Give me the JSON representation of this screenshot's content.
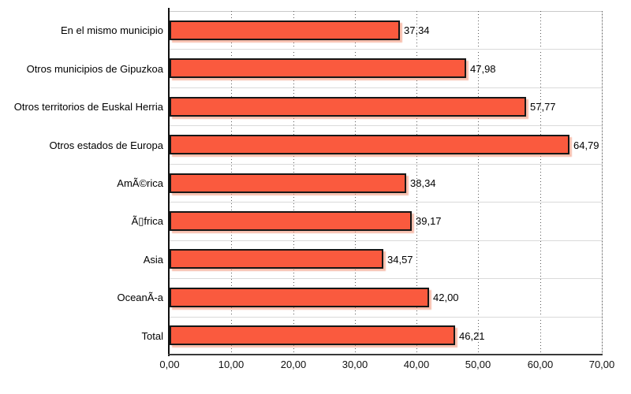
{
  "chart_data": {
    "type": "bar",
    "orientation": "horizontal",
    "title": "",
    "xlabel": "",
    "ylabel": "",
    "categories": [
      "En el mismo municipio",
      "Otros municipios de Gipuzkoa",
      "Otros territorios de Euskal Herria",
      "Otros estados de Europa",
      "AmÃ©rica",
      "Ã▯frica",
      "Asia",
      "OceanÃ-a",
      "Total"
    ],
    "values": [
      37.34,
      47.98,
      57.77,
      64.79,
      38.34,
      39.17,
      34.57,
      42.0,
      46.21
    ],
    "value_labels": [
      "37,34",
      "47,98",
      "57,77",
      "64,79",
      "38,34",
      "39,17",
      "34,57",
      "42,00",
      "46,21"
    ],
    "xlim": [
      0,
      70
    ],
    "x_tick_step": 10,
    "x_ticks": [
      "0,00",
      "10,00",
      "20,00",
      "30,00",
      "40,00",
      "50,00",
      "60,00",
      "70,00"
    ],
    "grid": "vertical-dotted",
    "legend": "none",
    "colors": {
      "bar_fill": "#FA5A3E",
      "bar_border": "#161616",
      "bar_shadow": "#F3B2A0",
      "gridline": "#5A5A5A",
      "row_separator": "#DADADA",
      "plot_frame": "#C9C9C9",
      "y_axis": "#0F0F0F",
      "x_axis": "#3A3A3A",
      "text": "#000000",
      "background": "#FFFFFF"
    }
  }
}
